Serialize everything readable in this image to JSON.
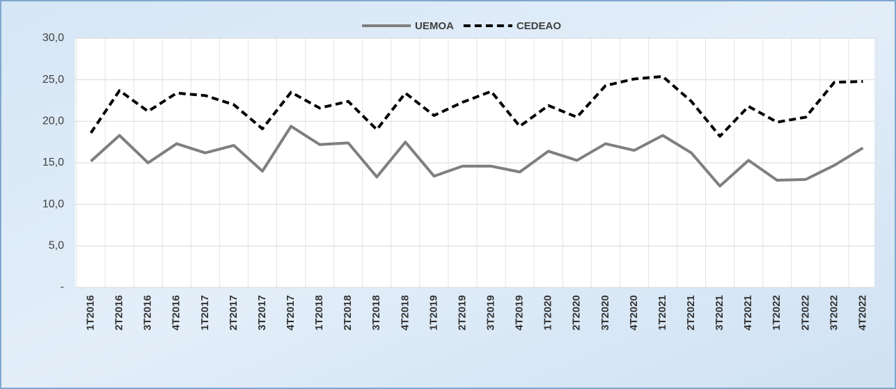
{
  "chart_data": {
    "type": "line",
    "categories": [
      "1T2016",
      "2T2016",
      "3T2016",
      "4T2016",
      "1T2017",
      "2T2017",
      "3T2017",
      "4T2017",
      "1T2018",
      "2T2018",
      "3T2018",
      "4T2018",
      "1T2019",
      "2T2019",
      "3T2019",
      "4T2019",
      "1T2020",
      "2T2020",
      "3T2020",
      "4T2020",
      "1T2021",
      "2T2021",
      "3T2021",
      "4T2021",
      "1T2022",
      "2T2022",
      "3T2022",
      "4T2022"
    ],
    "series": [
      {
        "name": "UEMOA",
        "color": "#7f7f7f",
        "dash": false,
        "values": [
          15.2,
          18.3,
          15.0,
          17.3,
          16.2,
          17.1,
          14.0,
          19.4,
          17.2,
          17.4,
          13.3,
          17.5,
          13.4,
          14.6,
          14.6,
          13.9,
          16.4,
          15.3,
          17.3,
          16.5,
          18.3,
          16.2,
          12.2,
          15.3,
          12.9,
          13.0,
          14.7,
          16.8
        ]
      },
      {
        "name": "CEDEAO",
        "color": "#000000",
        "dash": true,
        "values": [
          18.6,
          23.7,
          21.2,
          23.4,
          23.1,
          22.0,
          19.1,
          23.5,
          21.6,
          22.4,
          19.0,
          23.4,
          20.7,
          22.3,
          23.6,
          19.4,
          21.9,
          20.5,
          24.3,
          25.1,
          25.4,
          22.4,
          18.2,
          21.8,
          19.9,
          20.5,
          24.7,
          24.8
        ]
      }
    ],
    "ylim": [
      0,
      30
    ],
    "yticks": [
      {
        "value": 0,
        "label": "-"
      },
      {
        "value": 5,
        "label": "5,0"
      },
      {
        "value": 10,
        "label": "10,0"
      },
      {
        "value": 15,
        "label": "15,0"
      },
      {
        "value": 20,
        "label": "20,0"
      },
      {
        "value": 25,
        "label": "25,0"
      },
      {
        "value": 30,
        "label": "30,0"
      }
    ],
    "grid": true,
    "legend": "top"
  }
}
